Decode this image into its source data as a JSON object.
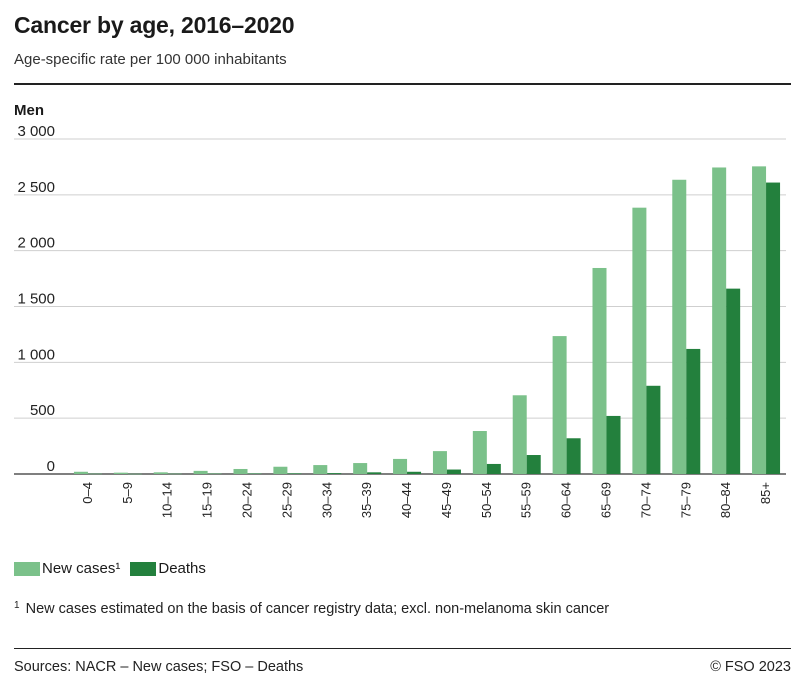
{
  "title": "Cancer by age, 2016–2020",
  "subtitle": "Age-specific rate per 100 000 inhabitants",
  "panel_label": "Men",
  "legend": {
    "new_cases": "New cases¹",
    "deaths": "Deaths"
  },
  "footnote": {
    "marker": "1",
    "text": "New cases estimated on the basis of cancer registry data; excl. non-melanoma skin cancer"
  },
  "source": "Sources: NACR – New cases; FSO – Deaths",
  "copyright": "© FSO 2023",
  "colors": {
    "new_cases": "#7bc18a",
    "deaths": "#23803d"
  },
  "chart_data": {
    "type": "bar",
    "categories": [
      "0–4",
      "5–9",
      "10–14",
      "15–19",
      "20–24",
      "25–29",
      "30–34",
      "35–39",
      "40–44",
      "45–49",
      "50–54",
      "55–59",
      "60–64",
      "65–69",
      "70–74",
      "75–79",
      "80–84",
      "85+"
    ],
    "series": [
      {
        "name": "New cases¹",
        "values": [
          20,
          12,
          15,
          28,
          45,
          65,
          80,
          98,
          135,
          205,
          385,
          705,
          1235,
          1845,
          2385,
          2635,
          2745,
          2755
        ]
      },
      {
        "name": "Deaths",
        "values": [
          3,
          2,
          3,
          4,
          5,
          6,
          8,
          15,
          20,
          40,
          90,
          170,
          320,
          520,
          790,
          1120,
          1660,
          2610
        ]
      }
    ],
    "ylim": [
      0,
      3000
    ],
    "yticks": [
      0,
      500,
      1000,
      1500,
      2000,
      2500,
      3000
    ],
    "ytick_labels": [
      "0",
      "500",
      "1 000",
      "1 500",
      "2 000",
      "2 500",
      "3 000"
    ],
    "grid": true
  }
}
